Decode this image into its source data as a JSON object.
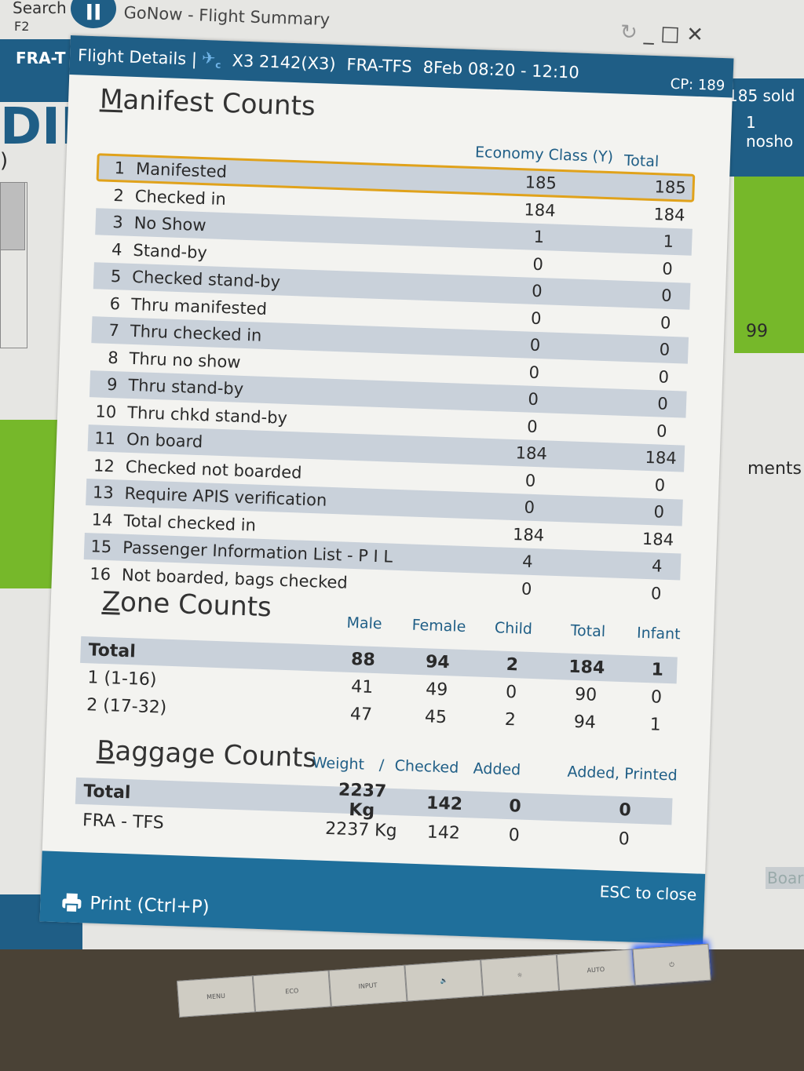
{
  "background_app": {
    "search_label": "Search",
    "search_shortcut": "F2",
    "left_header": "FRA-T",
    "left_big_text": "DIN",
    "left_paren": ")",
    "sold": "185 sold",
    "noshow": "1 nosho",
    "right_value": "99",
    "right_text": "ments",
    "right_button": "Boar"
  },
  "window": {
    "app_title": "GoNow - Flight Summary",
    "controls": {
      "refresh": "refresh-icon",
      "minimize": "minimize-icon",
      "maximize": "maximize-icon",
      "close": "close-icon"
    },
    "header": {
      "title": "Flight Details |",
      "airline_code_mark": "c",
      "flight": "X3 2142(X3)",
      "route": "FRA-TFS",
      "date_time": "8Feb 08:20 - 12:10",
      "cp": "CP: 189"
    }
  },
  "manifest": {
    "title_accel": "M",
    "title_rest": "anifest Counts",
    "col_economy": "Economy Class (Y)",
    "col_total": "Total",
    "rows": [
      {
        "n": "1",
        "label": "Manifested",
        "economy": "185",
        "total": "185"
      },
      {
        "n": "2",
        "label": "Checked in",
        "economy": "184",
        "total": "184"
      },
      {
        "n": "3",
        "label": "No Show",
        "economy": "1",
        "total": "1"
      },
      {
        "n": "4",
        "label": "Stand-by",
        "economy": "0",
        "total": "0"
      },
      {
        "n": "5",
        "label": "Checked stand-by",
        "economy": "0",
        "total": "0"
      },
      {
        "n": "6",
        "label": "Thru manifested",
        "economy": "0",
        "total": "0"
      },
      {
        "n": "7",
        "label": "Thru checked in",
        "economy": "0",
        "total": "0"
      },
      {
        "n": "8",
        "label": "Thru no show",
        "economy": "0",
        "total": "0"
      },
      {
        "n": "9",
        "label": "Thru stand-by",
        "economy": "0",
        "total": "0"
      },
      {
        "n": "10",
        "label": "Thru chkd stand-by",
        "economy": "0",
        "total": "0"
      },
      {
        "n": "11",
        "label": "On board",
        "economy": "184",
        "total": "184"
      },
      {
        "n": "12",
        "label": "Checked not boarded",
        "economy": "0",
        "total": "0"
      },
      {
        "n": "13",
        "label": "Require APIS verification",
        "economy": "0",
        "total": "0"
      },
      {
        "n": "14",
        "label": "Total checked in",
        "economy": "184",
        "total": "184"
      },
      {
        "n": "15",
        "label": "Passenger Information List - P I L",
        "economy": "4",
        "total": "4"
      },
      {
        "n": "16",
        "label": "Not boarded, bags checked",
        "economy": "0",
        "total": "0"
      }
    ],
    "selected_row": 1,
    "highlight_color": "#e0a21b"
  },
  "zones": {
    "title_accel": "Z",
    "title_rest": "one Counts",
    "columns": [
      "Male",
      "Female",
      "Child",
      "Total",
      "Infant"
    ],
    "rows": [
      {
        "label": "Total",
        "values": [
          "88",
          "94",
          "2",
          "184",
          "1"
        ]
      },
      {
        "label": "1 (1-16)",
        "values": [
          "41",
          "49",
          "0",
          "90",
          "0"
        ]
      },
      {
        "label": "2 (17-32)",
        "values": [
          "47",
          "45",
          "2",
          "94",
          "1"
        ]
      }
    ]
  },
  "baggage": {
    "title_accel": "B",
    "title_rest": "aggage Counts",
    "columns": [
      "Weight",
      "/",
      "Checked",
      "Added",
      "Added, Printed"
    ],
    "rows": [
      {
        "label": "Total",
        "values": [
          "2237 Kg",
          "142",
          "0",
          "0"
        ]
      },
      {
        "label": "FRA - TFS",
        "values": [
          "2237 Kg",
          "142",
          "0",
          "0"
        ]
      }
    ]
  },
  "footer": {
    "print_label": "Print (Ctrl+P)",
    "print_icon": "printer-icon",
    "esc_label": "ESC to close"
  },
  "monitor_buttons": [
    "MENU",
    "ECO",
    "INPUT",
    "🔉",
    "☼",
    "AUTO",
    "⏻"
  ],
  "colors": {
    "header_blue": "#1f5e86",
    "footer_blue": "#1f6f9b",
    "green": "#76b82a",
    "row_shade": "#c9d1da"
  }
}
